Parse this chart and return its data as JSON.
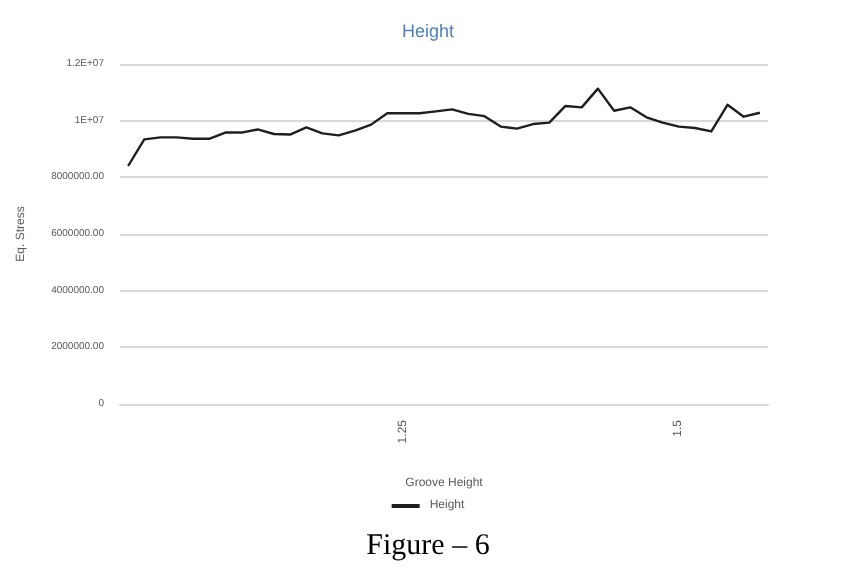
{
  "chart_data": {
    "type": "line",
    "title": "Height",
    "xlabel": "Groove Height",
    "ylabel": "Eq. Stress",
    "categories": [
      null,
      null,
      null,
      null,
      null,
      null,
      null,
      null,
      null,
      null,
      null,
      null,
      null,
      null,
      null,
      null,
      null,
      "1.25",
      null,
      null,
      null,
      null,
      null,
      null,
      null,
      null,
      null,
      null,
      null,
      null,
      null,
      null,
      null,
      null,
      "1.5",
      null,
      null,
      null,
      null,
      null
    ],
    "series": [
      {
        "name": "Height",
        "color": "#1f1f1f",
        "values": [
          8400000,
          9340000,
          9410000,
          9410000,
          9360000,
          9360000,
          9580000,
          9580000,
          9690000,
          9530000,
          9510000,
          9760000,
          9550000,
          9480000,
          9650000,
          9860000,
          10260000,
          10260000,
          10260000,
          10330000,
          10400000,
          10240000,
          10160000,
          9790000,
          9720000,
          9880000,
          9930000,
          10520000,
          10470000,
          11130000,
          10350000,
          10470000,
          10120000,
          9930000,
          9790000,
          9740000,
          9620000,
          10560000,
          10140000,
          10280000
        ]
      }
    ],
    "ylim": [
      0,
      12000000
    ],
    "yticks": [
      0,
      {
        "value": 2000000,
        "label": "2000000.00"
      },
      {
        "value": 4000000,
        "label": "4000000.00"
      },
      {
        "value": 6000000,
        "label": "6000000.00"
      },
      {
        "value": 8000000,
        "label": "8000000.00"
      },
      {
        "value": 10000000,
        "label": "1E+07"
      },
      {
        "value": 12000000,
        "label": "1.2E+07"
      }
    ],
    "grid": "y",
    "legend": "bottom",
    "marker": "none",
    "line_style": "solid",
    "annotations": [
      "Figure – 6"
    ]
  }
}
